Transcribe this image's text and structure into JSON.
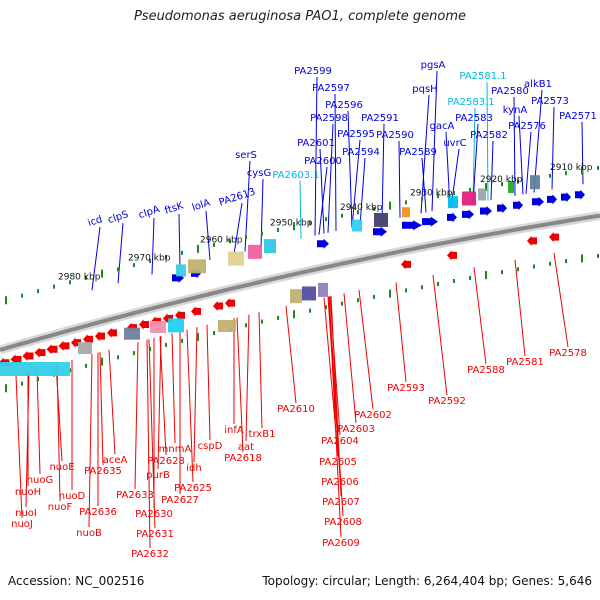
{
  "title": "Pseudomonas aeruginosa PAO1, complete genome",
  "accession_label": "Accession: NC_002516",
  "topology_label": "Topology: circular; Length: 6,264,404 bp; Genes: 5,646",
  "colors": {
    "forward": "#0000dd",
    "reverse": "#ee0000",
    "highlight": "#00b8e0",
    "backbone": "#888888",
    "tick": "#1a8a1a"
  },
  "scale_labels": [
    "2980 kbp",
    "2970 kbp",
    "2960 kbp",
    "2950 kbp",
    "2940 kbp",
    "2930 kbp",
    "2920 kbp",
    "2910 kbp"
  ],
  "top_labels": [
    "icd",
    "clpS",
    "clpA",
    "ftsK",
    "lolA",
    "PA2613",
    "serS",
    "cysG",
    "PA2603.1",
    "PA2601",
    "PA2600",
    "PA2598",
    "PA2599",
    "PA2597",
    "PA2596",
    "PA2595",
    "PA2594",
    "PA2591",
    "PA2590",
    "PA2589",
    "pqsH",
    "pgsA",
    "PA2583.1",
    "PA2581.1",
    "gacA",
    "uvrC",
    "PA2583",
    "PA2582",
    "PA2580",
    "kynA",
    "alkB1",
    "PA2576",
    "PA2573",
    "PA2571"
  ],
  "bottom_labels": [
    "nuoE",
    "nuoG",
    "nuoH",
    "nuoI",
    "nuoJ",
    "nuoF",
    "nuoD",
    "nuoB",
    "aceA",
    "PA2635",
    "PA2636",
    "PA2633",
    "PA2631",
    "PA2632",
    "PA2630",
    "purB",
    "PA2628",
    "mnmA",
    "PA2627",
    "idh",
    "PA2625",
    "cspD",
    "infA",
    "aat",
    "PA2618",
    "trxB1",
    "PA2610",
    "PA2602",
    "PA2603",
    "PA2604",
    "PA2605",
    "PA2606",
    "PA2607",
    "PA2608",
    "PA2609",
    "PA2593",
    "PA2592",
    "PA2588",
    "PA2581",
    "PA2578"
  ],
  "highlighted_labels": [
    "PA2603.1",
    "PA2583.1",
    "PA2581.1"
  ]
}
